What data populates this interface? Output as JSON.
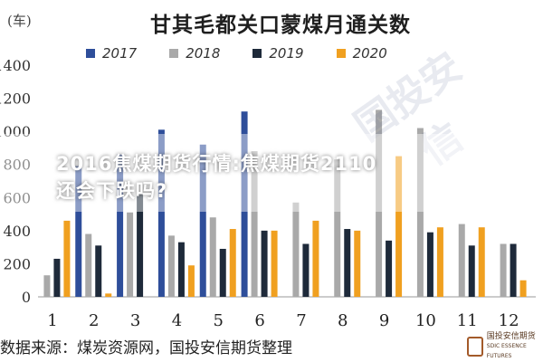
{
  "unit_label": "(车)",
  "chart_data": {
    "type": "bar",
    "title": "甘其毛都关口蒙煤月通关数",
    "categories": [
      "1",
      "2",
      "3",
      "4",
      "5",
      "6",
      "7",
      "8",
      "9",
      "10",
      "11",
      "12"
    ],
    "series": [
      {
        "name": "2017",
        "color": "#2e4e9a",
        "values": [
          0,
          790,
          860,
          1010,
          920,
          1120,
          0,
          0,
          0,
          0,
          0,
          0
        ]
      },
      {
        "name": "2018",
        "color": "#a9a9a9",
        "values": [
          130,
          380,
          510,
          370,
          480,
          880,
          570,
          830,
          1130,
          1020,
          440,
          320
        ]
      },
      {
        "name": "2019",
        "color": "#1e2a3a",
        "values": [
          230,
          310,
          620,
          330,
          290,
          400,
          320,
          410,
          340,
          390,
          310,
          320
        ]
      },
      {
        "name": "2020",
        "color": "#f0a020",
        "values": [
          460,
          20,
          0,
          190,
          410,
          400,
          460,
          400,
          850,
          420,
          420,
          100
        ]
      }
    ],
    "xlabel": "",
    "ylabel": "",
    "ylim": [
      0,
      1400
    ],
    "yticks": [
      "0",
      "200",
      "400",
      "600",
      "800",
      "1000",
      "1200",
      "1400"
    ],
    "legend_position": "top",
    "grid": false
  },
  "source_text": "数据来源：煤炭资源网，国投安信期货整理",
  "overlay_text": "2016焦煤期货行情:焦煤期货2110还会下跌吗?",
  "logo": {
    "text_line1": "国投安信期货",
    "text_line2": "SDIC ESSENCE FUTURES"
  }
}
